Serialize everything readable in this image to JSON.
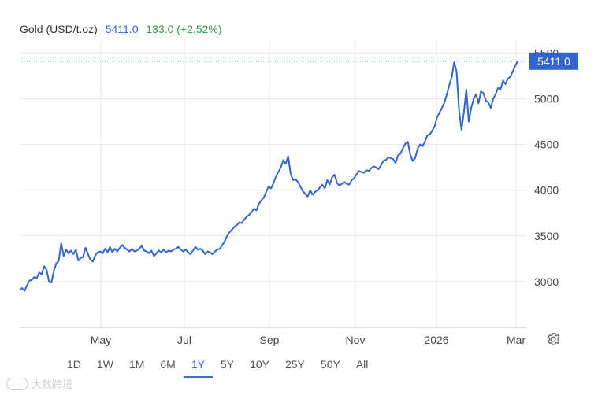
{
  "header": {
    "name": "Gold (USD/t.oz)",
    "price": "5411.0",
    "change": "133.0 (+2.52%)"
  },
  "colors": {
    "line": "#3366cc",
    "price_label_bg": "#3366cc",
    "change_positive": "#2e9e4f",
    "grid": "#e8e8e8"
  },
  "ranges": [
    "1D",
    "1W",
    "1M",
    "6M",
    "1Y",
    "5Y",
    "10Y",
    "25Y",
    "50Y",
    "All"
  ],
  "active_range": "1Y",
  "settings_icon": "gear-icon",
  "watermark": {
    "text": "大数跨境",
    "logo": "circle-logo"
  },
  "chart_data": {
    "type": "line",
    "title": "",
    "xlabel": "",
    "ylabel": "",
    "x_ticks": [
      "May",
      "Jul",
      "Sep",
      "Nov",
      "2026",
      "Mar"
    ],
    "y_ticks": [
      3000,
      3500,
      4000,
      4500,
      5000,
      5500
    ],
    "ylim": [
      2500,
      5650
    ],
    "grid": true,
    "current_value": 5411.0,
    "current_value_label": "5411.0",
    "series": [
      {
        "values": [
          2910,
          2930,
          2900,
          2960,
          3010,
          3020,
          3050,
          3040,
          3100,
          3080,
          3170,
          3130,
          3000,
          2990,
          3120,
          3200,
          3230,
          3420,
          3280,
          3350,
          3310,
          3340,
          3300,
          3350,
          3230,
          3260,
          3270,
          3370,
          3300,
          3240,
          3220,
          3290,
          3320,
          3330,
          3310,
          3360,
          3320,
          3380,
          3320,
          3360,
          3330,
          3370,
          3400,
          3370,
          3350,
          3330,
          3360,
          3330,
          3340,
          3360,
          3390,
          3340,
          3330,
          3310,
          3340,
          3280,
          3310,
          3340,
          3320,
          3350,
          3320,
          3340,
          3330,
          3350,
          3360,
          3380,
          3350,
          3330,
          3350,
          3320,
          3300,
          3340,
          3380,
          3350,
          3360,
          3340,
          3300,
          3330,
          3320,
          3300,
          3330,
          3350,
          3360,
          3400,
          3440,
          3500,
          3540,
          3570,
          3600,
          3620,
          3650,
          3640,
          3680,
          3710,
          3730,
          3760,
          3800,
          3780,
          3850,
          3890,
          3920,
          3980,
          4040,
          4020,
          4080,
          4150,
          4200,
          4250,
          4330,
          4290,
          4370,
          4180,
          4110,
          4120,
          4090,
          4040,
          3990,
          3960,
          3930,
          4000,
          3950,
          3980,
          4000,
          4030,
          4060,
          4020,
          4110,
          4060,
          4140,
          4170,
          4080,
          4050,
          4070,
          4090,
          4070,
          4060,
          4110,
          4130,
          4170,
          4210,
          4200,
          4190,
          4220,
          4210,
          4240,
          4260,
          4250,
          4230,
          4270,
          4320,
          4330,
          4360,
          4350,
          4340,
          4300,
          4380,
          4400,
          4460,
          4510,
          4530,
          4390,
          4320,
          4350,
          4450,
          4500,
          4480,
          4530,
          4600,
          4610,
          4650,
          4700,
          4800,
          4850,
          4900,
          4960,
          5050,
          5150,
          5240,
          5400,
          5300,
          4880,
          4660,
          4850,
          5100,
          4750,
          4900,
          5000,
          5050,
          4950,
          5080,
          5060,
          4980,
          4960,
          4900,
          5000,
          5050,
          5120,
          5100,
          5200,
          5160,
          5220,
          5240,
          5300,
          5360,
          5411
        ]
      }
    ]
  }
}
